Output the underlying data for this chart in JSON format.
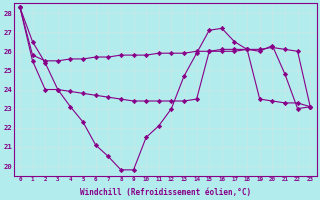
{
  "xlabel": "Windchill (Refroidissement éolien,°C)",
  "xlim": [
    -0.5,
    23.5
  ],
  "ylim": [
    19.5,
    28.5
  ],
  "yticks": [
    20,
    21,
    22,
    23,
    24,
    25,
    26,
    27,
    28
  ],
  "xticks": [
    0,
    1,
    2,
    3,
    4,
    5,
    6,
    7,
    8,
    9,
    10,
    11,
    12,
    13,
    14,
    15,
    16,
    17,
    18,
    19,
    20,
    21,
    22,
    23
  ],
  "background_color": "#b2ecec",
  "line1_x": [
    0,
    1,
    2,
    3,
    4,
    5,
    6,
    7,
    8,
    9,
    10,
    11,
    12,
    13,
    14,
    15,
    16,
    17,
    18,
    19,
    20,
    21,
    22,
    23
  ],
  "line1_y": [
    28.3,
    26.5,
    25.4,
    24.0,
    23.1,
    22.3,
    21.1,
    20.5,
    19.8,
    19.8,
    21.5,
    22.1,
    23.0,
    24.7,
    25.9,
    27.1,
    27.2,
    26.5,
    26.1,
    26.0,
    26.3,
    24.8,
    23.0,
    23.1
  ],
  "line2_x": [
    0,
    1,
    2,
    3,
    4,
    5,
    6,
    7,
    8,
    9,
    10,
    11,
    12,
    13,
    14,
    15,
    16,
    17,
    18,
    19,
    20,
    21,
    22,
    23
  ],
  "line2_y": [
    28.3,
    25.8,
    25.5,
    25.5,
    25.6,
    25.6,
    25.7,
    25.7,
    25.8,
    25.8,
    25.8,
    25.9,
    25.9,
    25.9,
    26.0,
    26.0,
    26.0,
    26.0,
    26.1,
    26.1,
    26.2,
    26.1,
    26.0,
    23.1
  ],
  "line3_x": [
    0,
    1,
    2,
    3,
    4,
    5,
    6,
    7,
    8,
    9,
    10,
    11,
    12,
    13,
    14,
    15,
    16,
    17,
    18,
    19,
    20,
    21,
    22,
    23
  ],
  "line3_y": [
    28.3,
    25.5,
    24.0,
    24.0,
    23.9,
    23.8,
    23.7,
    23.6,
    23.5,
    23.4,
    23.4,
    23.4,
    23.4,
    23.4,
    23.5,
    26.0,
    26.1,
    26.1,
    26.1,
    23.5,
    23.4,
    23.3,
    23.3,
    23.1
  ],
  "line_color": "#880088",
  "grid_color": "#c8e8e8",
  "marker": "D",
  "markersize": 2.2,
  "linewidth": 0.8,
  "xlabel_fontsize": 5.5,
  "xtick_fontsize": 4.2,
  "ytick_fontsize": 5.2
}
